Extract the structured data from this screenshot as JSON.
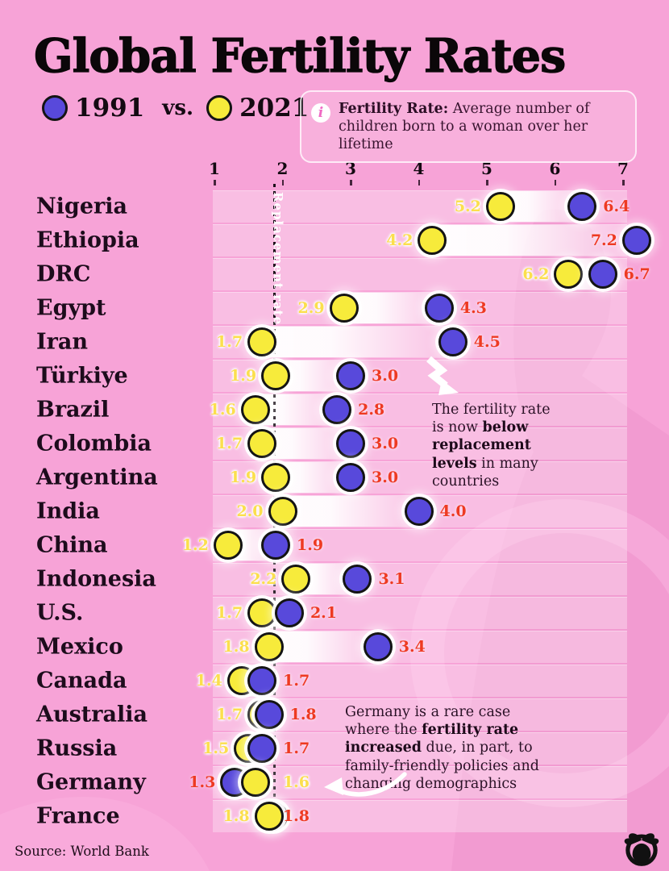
{
  "header": {
    "title": "Global Fertility Rates",
    "legend": {
      "year1991": "1991",
      "vs": "vs.",
      "year2021": "2021"
    },
    "info": {
      "label": "Fertility Rate:",
      "text": " Average number of children born to a woman over her lifetime"
    }
  },
  "axis": {
    "ticks": [
      1,
      2,
      3,
      4,
      5,
      6,
      7
    ],
    "replacement_label": "Replacement rate",
    "replacement_value": 2.1,
    "xlim": [
      1,
      7
    ]
  },
  "chart_data": {
    "type": "dumbbell",
    "title": "Global Fertility Rates",
    "series": [
      {
        "name": "1991",
        "color": "#5849DB",
        "label_color": "#EE3A22"
      },
      {
        "name": "2021",
        "color": "#F7EB3B",
        "label_color": "#FBDF4D"
      }
    ],
    "rows": [
      {
        "country": "Nigeria",
        "v1991": 6.4,
        "v2021": 5.2
      },
      {
        "country": "Ethiopia",
        "v1991": 7.2,
        "v2021": 4.2,
        "side1991": "left"
      },
      {
        "country": "DRC",
        "v1991": 6.7,
        "v2021": 6.2
      },
      {
        "country": "Egypt",
        "v1991": 4.3,
        "v2021": 2.9
      },
      {
        "country": "Iran",
        "v1991": 4.5,
        "v2021": 1.7
      },
      {
        "country": "Türkiye",
        "v1991": 3.0,
        "v2021": 1.9
      },
      {
        "country": "Brazil",
        "v1991": 2.8,
        "v2021": 1.6
      },
      {
        "country": "Colombia",
        "v1991": 3.0,
        "v2021": 1.7
      },
      {
        "country": "Argentina",
        "v1991": 3.0,
        "v2021": 1.9
      },
      {
        "country": "India",
        "v1991": 4.0,
        "v2021": 2.0
      },
      {
        "country": "China",
        "v1991": 1.9,
        "v2021": 1.2
      },
      {
        "country": "Indonesia",
        "v1991": 3.1,
        "v2021": 2.2
      },
      {
        "country": "U.S.",
        "v1991": 2.1,
        "v2021": 1.7
      },
      {
        "country": "Mexico",
        "v1991": 3.4,
        "v2021": 1.8
      },
      {
        "country": "Canada",
        "v1991": 1.7,
        "v2021": 1.4
      },
      {
        "country": "Australia",
        "v1991": 1.8,
        "v2021": 1.7
      },
      {
        "country": "Russia",
        "v1991": 1.7,
        "v2021": 1.5
      },
      {
        "country": "Germany",
        "v1991": 1.3,
        "v2021": 1.6,
        "side1991": "left",
        "side2021": "right-of-line",
        "front": "2021"
      },
      {
        "country": "France",
        "v1991": 1.8,
        "v2021": 1.8,
        "side1991": "right-of-line",
        "side2021": "left",
        "front": "2021"
      }
    ]
  },
  "annotations": [
    {
      "segments": [
        {
          "text": "The fertility rate is now ",
          "bold": false
        },
        {
          "text": "below replacement levels",
          "bold": true
        },
        {
          "text": " in many countries",
          "bold": false
        }
      ]
    },
    {
      "segments": [
        {
          "text": "Germany is a rare case where the ",
          "bold": false
        },
        {
          "text": "fertility rate increased",
          "bold": true
        },
        {
          "text": " due, in part, to family-friendly policies and changing demographics",
          "bold": false
        }
      ]
    }
  ],
  "footer": {
    "source": "Source: World Bank"
  },
  "colors": {
    "background": "#F7A3D7",
    "row_band": "rgba(255,255,255,0.30)",
    "dotted_line": "#1a1018"
  }
}
